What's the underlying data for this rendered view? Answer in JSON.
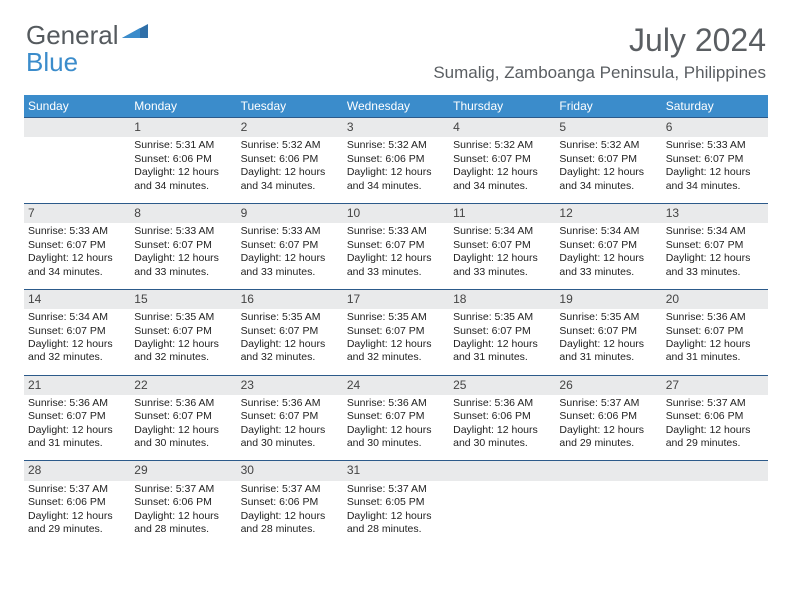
{
  "brand": {
    "word1": "General",
    "word2": "Blue",
    "color1": "#555a5e",
    "color2": "#3b8ccb"
  },
  "title": "July 2024",
  "location": "Sumalig, Zamboanga Peninsula, Philippines",
  "header_bg": "#3b8ccb",
  "stripe_bg": "#e9eaeb",
  "rule_color": "#2c5a8a",
  "columns": [
    "Sunday",
    "Monday",
    "Tuesday",
    "Wednesday",
    "Thursday",
    "Friday",
    "Saturday"
  ],
  "weeks": [
    {
      "nums": [
        "",
        "1",
        "2",
        "3",
        "4",
        "5",
        "6"
      ],
      "cells": [
        null,
        {
          "sunrise": "Sunrise: 5:31 AM",
          "sunset": "Sunset: 6:06 PM",
          "day1": "Daylight: 12 hours",
          "day2": "and 34 minutes."
        },
        {
          "sunrise": "Sunrise: 5:32 AM",
          "sunset": "Sunset: 6:06 PM",
          "day1": "Daylight: 12 hours",
          "day2": "and 34 minutes."
        },
        {
          "sunrise": "Sunrise: 5:32 AM",
          "sunset": "Sunset: 6:06 PM",
          "day1": "Daylight: 12 hours",
          "day2": "and 34 minutes."
        },
        {
          "sunrise": "Sunrise: 5:32 AM",
          "sunset": "Sunset: 6:07 PM",
          "day1": "Daylight: 12 hours",
          "day2": "and 34 minutes."
        },
        {
          "sunrise": "Sunrise: 5:32 AM",
          "sunset": "Sunset: 6:07 PM",
          "day1": "Daylight: 12 hours",
          "day2": "and 34 minutes."
        },
        {
          "sunrise": "Sunrise: 5:33 AM",
          "sunset": "Sunset: 6:07 PM",
          "day1": "Daylight: 12 hours",
          "day2": "and 34 minutes."
        }
      ]
    },
    {
      "nums": [
        "7",
        "8",
        "9",
        "10",
        "11",
        "12",
        "13"
      ],
      "cells": [
        {
          "sunrise": "Sunrise: 5:33 AM",
          "sunset": "Sunset: 6:07 PM",
          "day1": "Daylight: 12 hours",
          "day2": "and 34 minutes."
        },
        {
          "sunrise": "Sunrise: 5:33 AM",
          "sunset": "Sunset: 6:07 PM",
          "day1": "Daylight: 12 hours",
          "day2": "and 33 minutes."
        },
        {
          "sunrise": "Sunrise: 5:33 AM",
          "sunset": "Sunset: 6:07 PM",
          "day1": "Daylight: 12 hours",
          "day2": "and 33 minutes."
        },
        {
          "sunrise": "Sunrise: 5:33 AM",
          "sunset": "Sunset: 6:07 PM",
          "day1": "Daylight: 12 hours",
          "day2": "and 33 minutes."
        },
        {
          "sunrise": "Sunrise: 5:34 AM",
          "sunset": "Sunset: 6:07 PM",
          "day1": "Daylight: 12 hours",
          "day2": "and 33 minutes."
        },
        {
          "sunrise": "Sunrise: 5:34 AM",
          "sunset": "Sunset: 6:07 PM",
          "day1": "Daylight: 12 hours",
          "day2": "and 33 minutes."
        },
        {
          "sunrise": "Sunrise: 5:34 AM",
          "sunset": "Sunset: 6:07 PM",
          "day1": "Daylight: 12 hours",
          "day2": "and 33 minutes."
        }
      ]
    },
    {
      "nums": [
        "14",
        "15",
        "16",
        "17",
        "18",
        "19",
        "20"
      ],
      "cells": [
        {
          "sunrise": "Sunrise: 5:34 AM",
          "sunset": "Sunset: 6:07 PM",
          "day1": "Daylight: 12 hours",
          "day2": "and 32 minutes."
        },
        {
          "sunrise": "Sunrise: 5:35 AM",
          "sunset": "Sunset: 6:07 PM",
          "day1": "Daylight: 12 hours",
          "day2": "and 32 minutes."
        },
        {
          "sunrise": "Sunrise: 5:35 AM",
          "sunset": "Sunset: 6:07 PM",
          "day1": "Daylight: 12 hours",
          "day2": "and 32 minutes."
        },
        {
          "sunrise": "Sunrise: 5:35 AM",
          "sunset": "Sunset: 6:07 PM",
          "day1": "Daylight: 12 hours",
          "day2": "and 32 minutes."
        },
        {
          "sunrise": "Sunrise: 5:35 AM",
          "sunset": "Sunset: 6:07 PM",
          "day1": "Daylight: 12 hours",
          "day2": "and 31 minutes."
        },
        {
          "sunrise": "Sunrise: 5:35 AM",
          "sunset": "Sunset: 6:07 PM",
          "day1": "Daylight: 12 hours",
          "day2": "and 31 minutes."
        },
        {
          "sunrise": "Sunrise: 5:36 AM",
          "sunset": "Sunset: 6:07 PM",
          "day1": "Daylight: 12 hours",
          "day2": "and 31 minutes."
        }
      ]
    },
    {
      "nums": [
        "21",
        "22",
        "23",
        "24",
        "25",
        "26",
        "27"
      ],
      "cells": [
        {
          "sunrise": "Sunrise: 5:36 AM",
          "sunset": "Sunset: 6:07 PM",
          "day1": "Daylight: 12 hours",
          "day2": "and 31 minutes."
        },
        {
          "sunrise": "Sunrise: 5:36 AM",
          "sunset": "Sunset: 6:07 PM",
          "day1": "Daylight: 12 hours",
          "day2": "and 30 minutes."
        },
        {
          "sunrise": "Sunrise: 5:36 AM",
          "sunset": "Sunset: 6:07 PM",
          "day1": "Daylight: 12 hours",
          "day2": "and 30 minutes."
        },
        {
          "sunrise": "Sunrise: 5:36 AM",
          "sunset": "Sunset: 6:07 PM",
          "day1": "Daylight: 12 hours",
          "day2": "and 30 minutes."
        },
        {
          "sunrise": "Sunrise: 5:36 AM",
          "sunset": "Sunset: 6:06 PM",
          "day1": "Daylight: 12 hours",
          "day2": "and 30 minutes."
        },
        {
          "sunrise": "Sunrise: 5:37 AM",
          "sunset": "Sunset: 6:06 PM",
          "day1": "Daylight: 12 hours",
          "day2": "and 29 minutes."
        },
        {
          "sunrise": "Sunrise: 5:37 AM",
          "sunset": "Sunset: 6:06 PM",
          "day1": "Daylight: 12 hours",
          "day2": "and 29 minutes."
        }
      ]
    },
    {
      "nums": [
        "28",
        "29",
        "30",
        "31",
        "",
        "",
        ""
      ],
      "cells": [
        {
          "sunrise": "Sunrise: 5:37 AM",
          "sunset": "Sunset: 6:06 PM",
          "day1": "Daylight: 12 hours",
          "day2": "and 29 minutes."
        },
        {
          "sunrise": "Sunrise: 5:37 AM",
          "sunset": "Sunset: 6:06 PM",
          "day1": "Daylight: 12 hours",
          "day2": "and 28 minutes."
        },
        {
          "sunrise": "Sunrise: 5:37 AM",
          "sunset": "Sunset: 6:06 PM",
          "day1": "Daylight: 12 hours",
          "day2": "and 28 minutes."
        },
        {
          "sunrise": "Sunrise: 5:37 AM",
          "sunset": "Sunset: 6:05 PM",
          "day1": "Daylight: 12 hours",
          "day2": "and 28 minutes."
        },
        null,
        null,
        null
      ]
    }
  ]
}
